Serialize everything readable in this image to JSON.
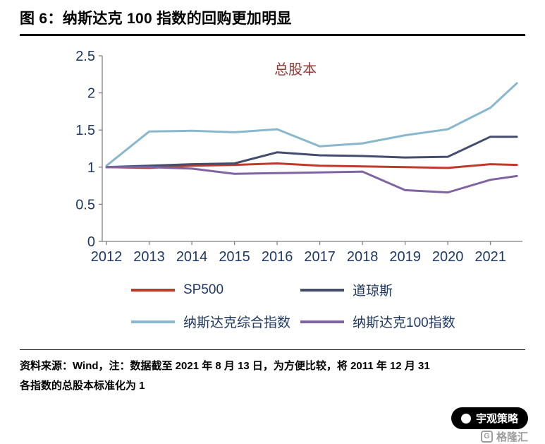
{
  "header": {
    "title": "图 6：纳斯达克 100 指数的回购更加明显"
  },
  "chart_data": {
    "type": "line",
    "title": "总股本",
    "title_color": "#953735",
    "axis_color": "#808080",
    "tick_label_color": "#1f3864",
    "grid": false,
    "legend_position": "bottom",
    "x": [
      2012,
      2013,
      2014,
      2015,
      2016,
      2017,
      2018,
      2019,
      2020,
      2021,
      2021.62
    ],
    "x_ticks": [
      2012,
      2013,
      2014,
      2015,
      2016,
      2017,
      2018,
      2019,
      2020,
      2021
    ],
    "x_tick_labels": [
      "2012",
      "2013",
      "2014",
      "2015",
      "2016",
      "2017",
      "2018",
      "2019",
      "2020",
      "2021"
    ],
    "y_ticks": [
      0,
      0.5,
      1,
      1.5,
      2,
      2.5
    ],
    "y_tick_labels": [
      "0",
      "0.5",
      "1",
      "1.5",
      "2",
      "2.5"
    ],
    "xlim": [
      2011.9,
      2021.75
    ],
    "ylim": [
      0,
      2.5
    ],
    "series": [
      {
        "name": "SP500",
        "color": "#c0392b",
        "values": [
          1.0,
          0.99,
          1.02,
          1.03,
          1.05,
          1.02,
          1.01,
          1.0,
          0.99,
          1.04,
          1.03
        ]
      },
      {
        "name": "道琼斯",
        "color": "#454d6e",
        "values": [
          1.0,
          1.02,
          1.04,
          1.05,
          1.2,
          1.16,
          1.15,
          1.13,
          1.14,
          1.41,
          1.41
        ]
      },
      {
        "name": "纳斯达克综合指数",
        "color": "#89b7cb",
        "values": [
          1.02,
          1.48,
          1.49,
          1.47,
          1.51,
          1.28,
          1.32,
          1.43,
          1.51,
          1.8,
          2.13
        ]
      },
      {
        "name": "纳斯达克100指数",
        "color": "#8064a2",
        "values": [
          1.0,
          1.0,
          0.98,
          0.91,
          0.92,
          0.93,
          0.94,
          0.69,
          0.66,
          0.83,
          0.88
        ]
      }
    ]
  },
  "footer": {
    "source_note_line1": "资料来源：Wind，注：数据截至 2021 年 8 月 13 日，为方便比较，将 2011 年 12 月 31",
    "source_note_line2": "各指数的总股本标准化为 1"
  },
  "watermark": {
    "brand": "宇观策略",
    "logo_letter": "G",
    "logo_text": "格隆汇"
  }
}
